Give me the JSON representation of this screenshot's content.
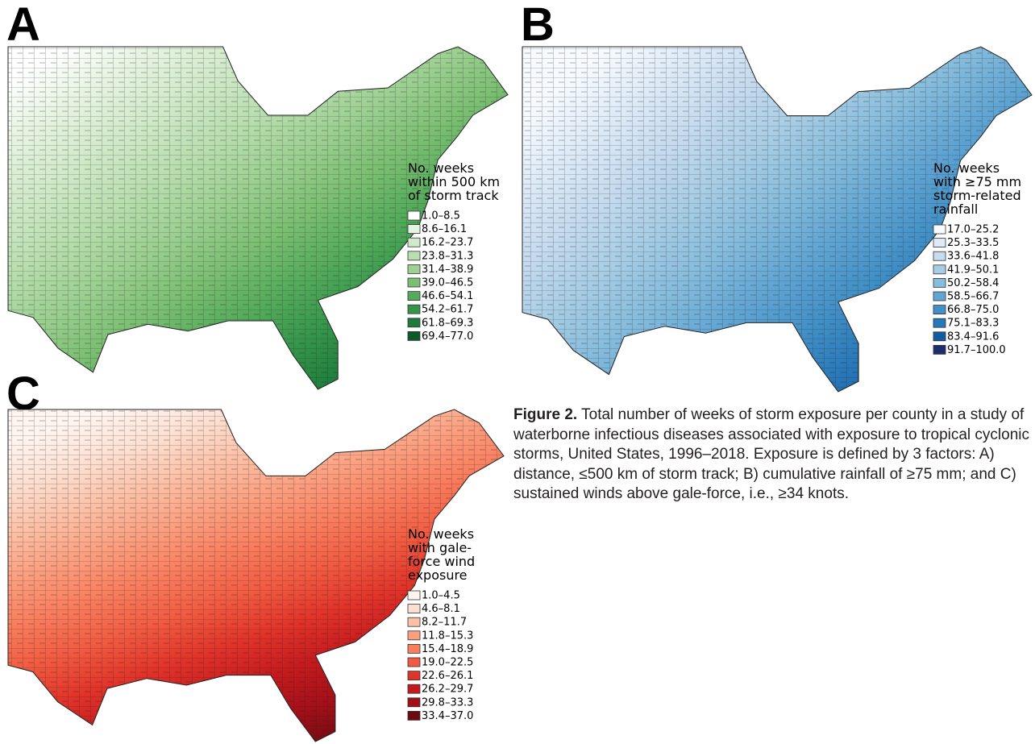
{
  "panels": [
    {
      "letter": "A",
      "legend_title": [
        "No. weeks",
        "within 500 km",
        "of storm track"
      ],
      "legend": [
        {
          "label": "1.0–8.5",
          "color": "#ffffff"
        },
        {
          "label": "8.6–16.1",
          "color": "#e5f3e0"
        },
        {
          "label": "16.2–23.7",
          "color": "#d0e9c8"
        },
        {
          "label": "23.8–31.3",
          "color": "#b9deaf"
        },
        {
          "label": "31.4–38.9",
          "color": "#9dd092"
        },
        {
          "label": "39.0–46.5",
          "color": "#7cbf73"
        },
        {
          "label": "46.6–54.1",
          "color": "#55ab5b"
        },
        {
          "label": "54.2–61.7",
          "color": "#34944a"
        },
        {
          "label": "61.8–69.3",
          "color": "#1d7c3b"
        },
        {
          "label": "69.4–77.0",
          "color": "#0b5a27"
        }
      ]
    },
    {
      "letter": "B",
      "legend_title": [
        "No. weeks",
        "with ≥75 mm",
        "storm-related",
        "rainfall"
      ],
      "legend": [
        {
          "label": "17.0–25.2",
          "color": "#f7fbff"
        },
        {
          "label": "25.3–33.5",
          "color": "#deebf7"
        },
        {
          "label": "33.6–41.8",
          "color": "#c6dbef"
        },
        {
          "label": "41.9–50.1",
          "color": "#a8cde5"
        },
        {
          "label": "50.2–58.4",
          "color": "#86bcdc"
        },
        {
          "label": "58.5–66.7",
          "color": "#62a5d3"
        },
        {
          "label": "66.8–75.0",
          "color": "#4290c6"
        },
        {
          "label": "75.1–83.3",
          "color": "#2877b8"
        },
        {
          "label": "83.4–91.6",
          "color": "#135aa0"
        },
        {
          "label": "91.7–100.0",
          "color": "#1c2f6b"
        }
      ]
    },
    {
      "letter": "C",
      "legend_title": [
        "No. weeks",
        "with gale-",
        "force wind",
        "exposure"
      ],
      "legend": [
        {
          "label": "1.0–4.5",
          "color": "#fff5f0"
        },
        {
          "label": "4.6–8.1",
          "color": "#fde0d2"
        },
        {
          "label": "8.2–11.7",
          "color": "#fcc0a6"
        },
        {
          "label": "11.8–15.3",
          "color": "#fb9f7f"
        },
        {
          "label": "15.4–18.9",
          "color": "#f97e5e"
        },
        {
          "label": "19.0–22.5",
          "color": "#f15b41"
        },
        {
          "label": "22.6–26.1",
          "color": "#e13329"
        },
        {
          "label": "26.2–29.7",
          "color": "#c41a1d"
        },
        {
          "label": "29.8–33.3",
          "color": "#a10f18"
        },
        {
          "label": "33.4–37.0",
          "color": "#6d0a10"
        }
      ]
    }
  ],
  "caption": {
    "label": "Figure 2.",
    "text": "Total number of weeks of storm exposure per county in a study of waterborne infectious diseases associated with exposure to tropical cyclonic storms, United States, 1996–2018. Exposure is defined by 3 factors: A) distance, ≤500 km of storm track; B) cumulative rainfall of ≥75 mm; and C) sustained winds above gale-force, i.e., ≥34 knots."
  }
}
